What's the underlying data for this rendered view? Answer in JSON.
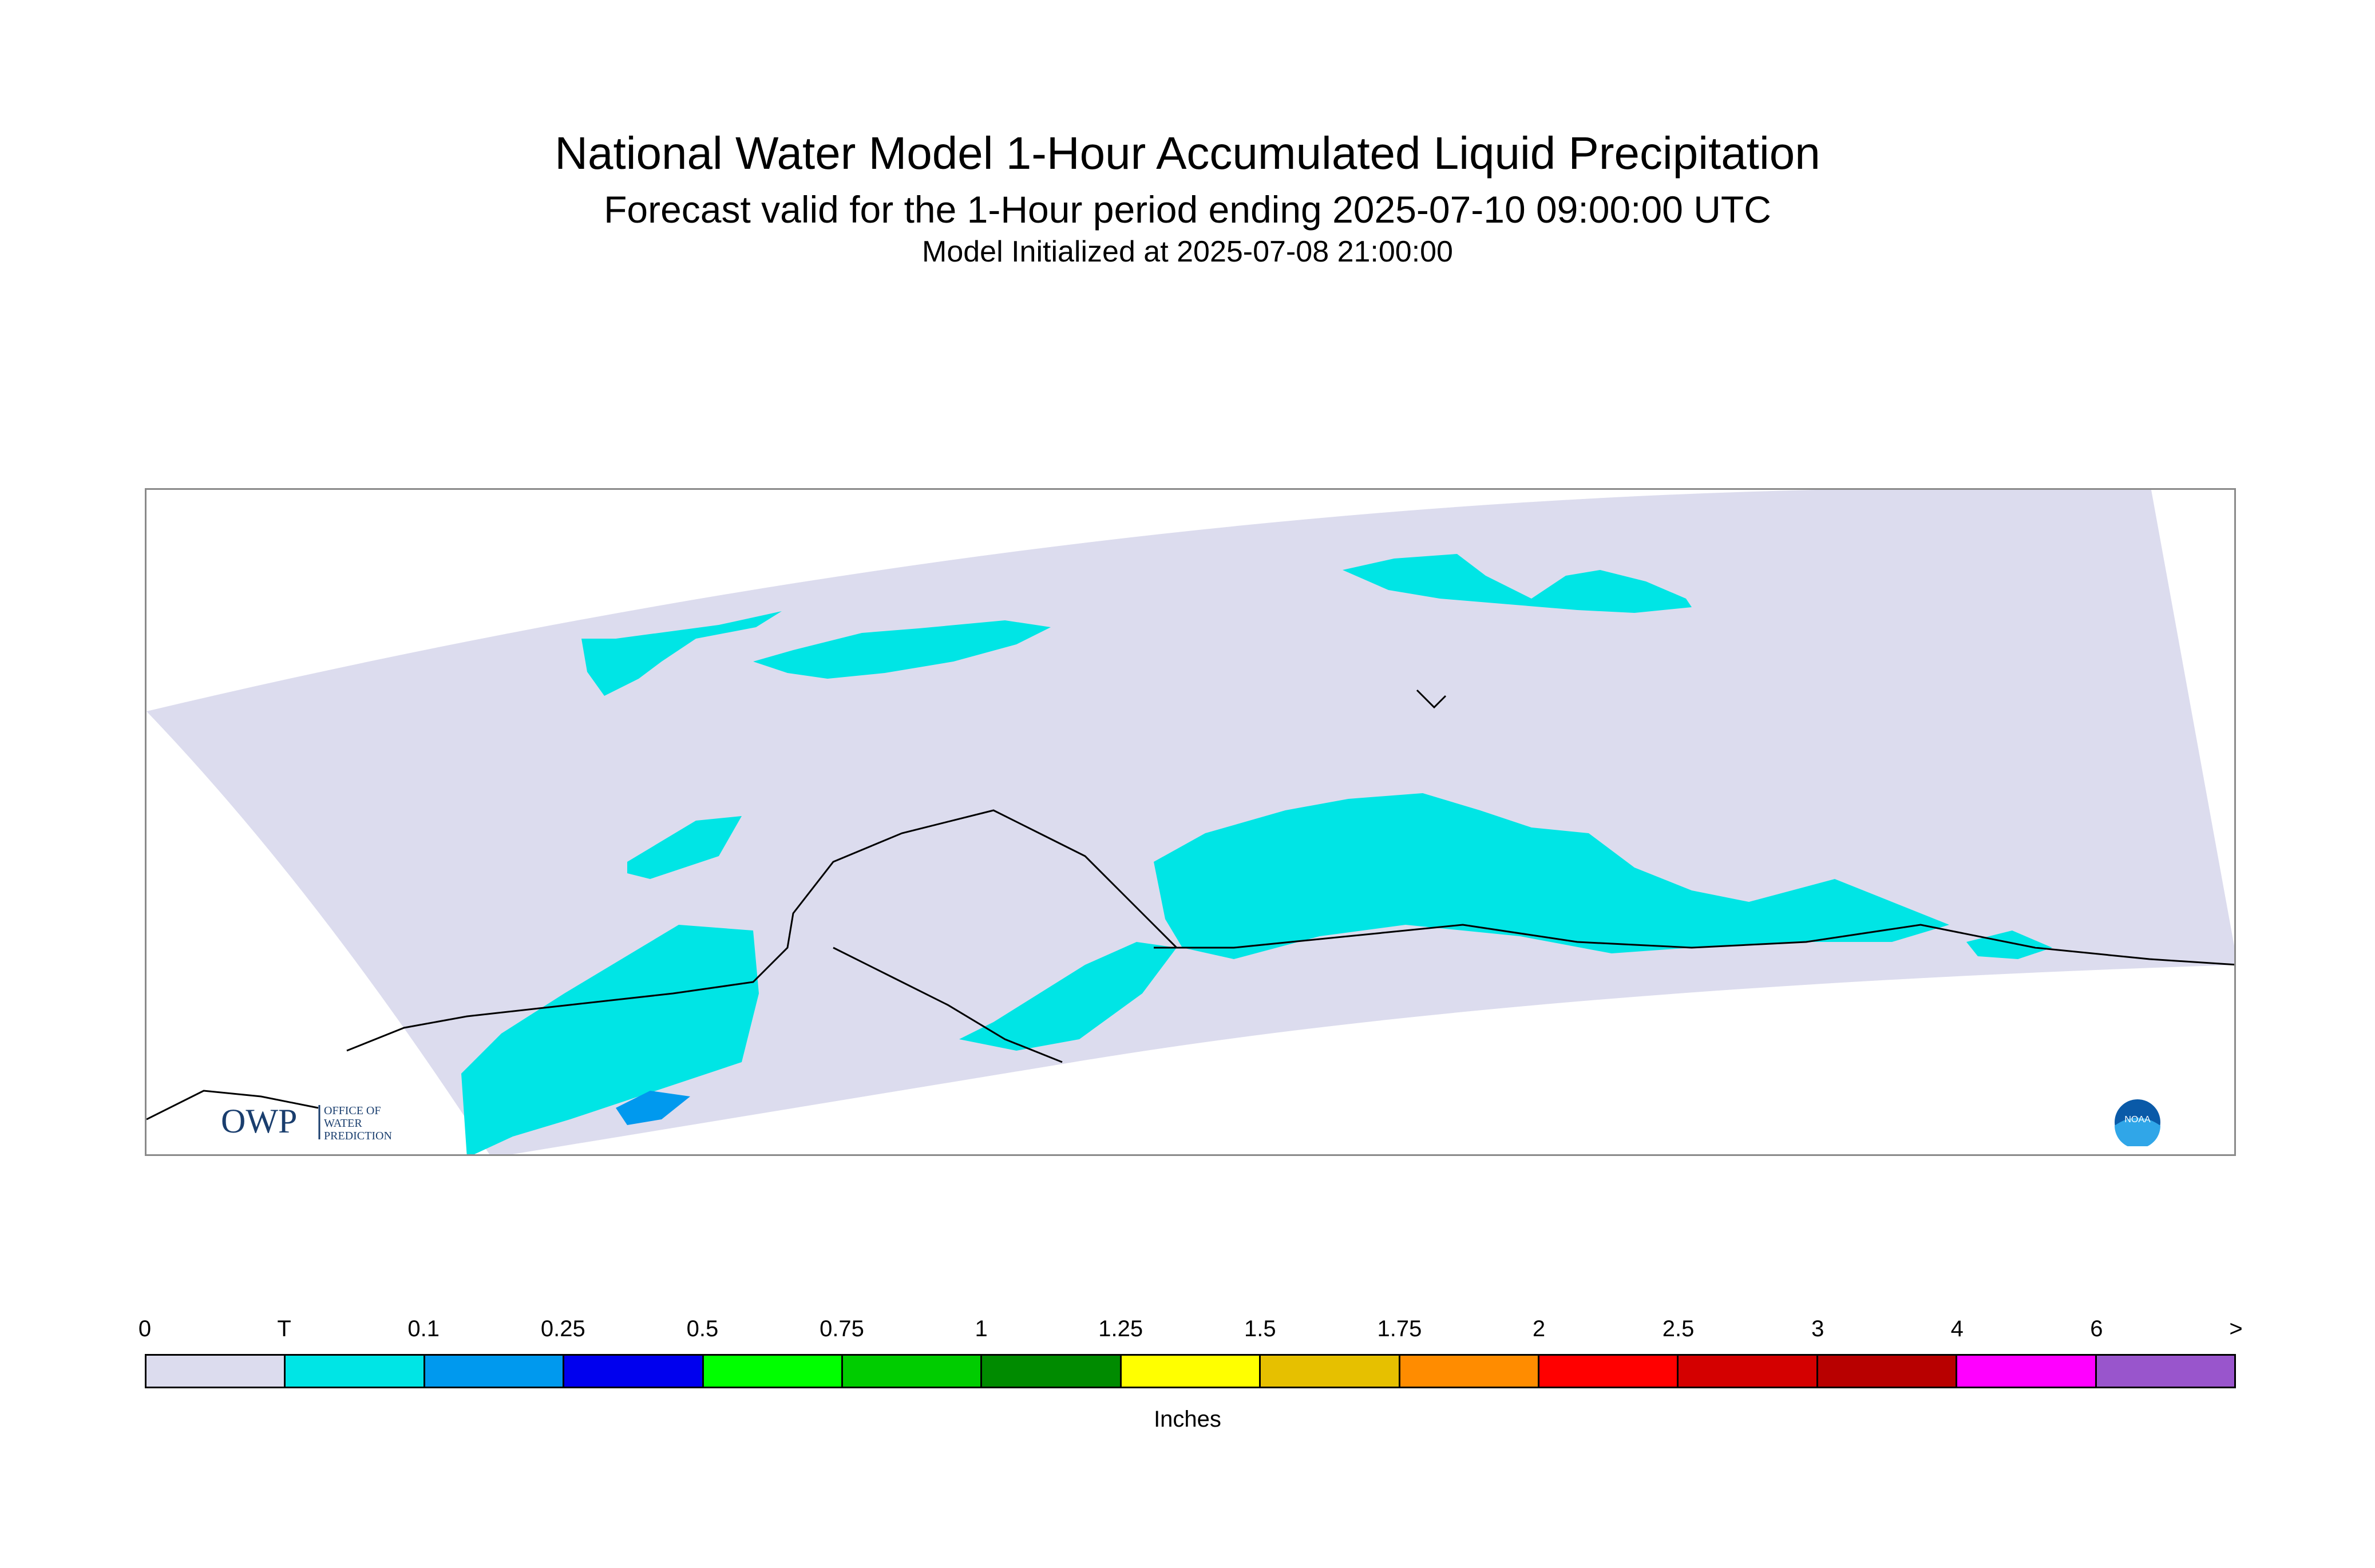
{
  "title": "National Water Model 1-Hour Accumulated Liquid Precipitation",
  "subtitle": "Forecast valid for the 1-Hour period ending 2025-07-10 09:00:00 UTC",
  "init_line": "Model Initialized at 2025-07-08 21:00:00",
  "logos": {
    "owp_mark": "OWP",
    "owp_text": [
      "OFFICE OF",
      "WATER",
      "PREDICTION"
    ],
    "noaa_text": "NOAA"
  },
  "colors": {
    "domain_fill": "#dcdcee",
    "trace_fill": "#00e5e5",
    "light_blue": "#0099ee",
    "coastline": "#000000"
  },
  "legend": {
    "units": "Inches",
    "tick_labels": [
      "0",
      "T",
      "0.1",
      "0.25",
      "0.5",
      "0.75",
      "1",
      "1.25",
      "1.5",
      "1.75",
      "2",
      "2.5",
      "3",
      "4",
      "6",
      ">"
    ],
    "bins": [
      {
        "color": "#dcdcee"
      },
      {
        "color": "#00e5e5"
      },
      {
        "color": "#0099ee"
      },
      {
        "color": "#0000ee"
      },
      {
        "color": "#00ff00"
      },
      {
        "color": "#00cc00"
      },
      {
        "color": "#008b00"
      },
      {
        "color": "#ffff00"
      },
      {
        "color": "#e6c000"
      },
      {
        "color": "#ff8c00"
      },
      {
        "color": "#ff0000"
      },
      {
        "color": "#d40000"
      },
      {
        "color": "#b80000"
      },
      {
        "color": "#ff00ff"
      },
      {
        "color": "#9955cc"
      }
    ]
  }
}
